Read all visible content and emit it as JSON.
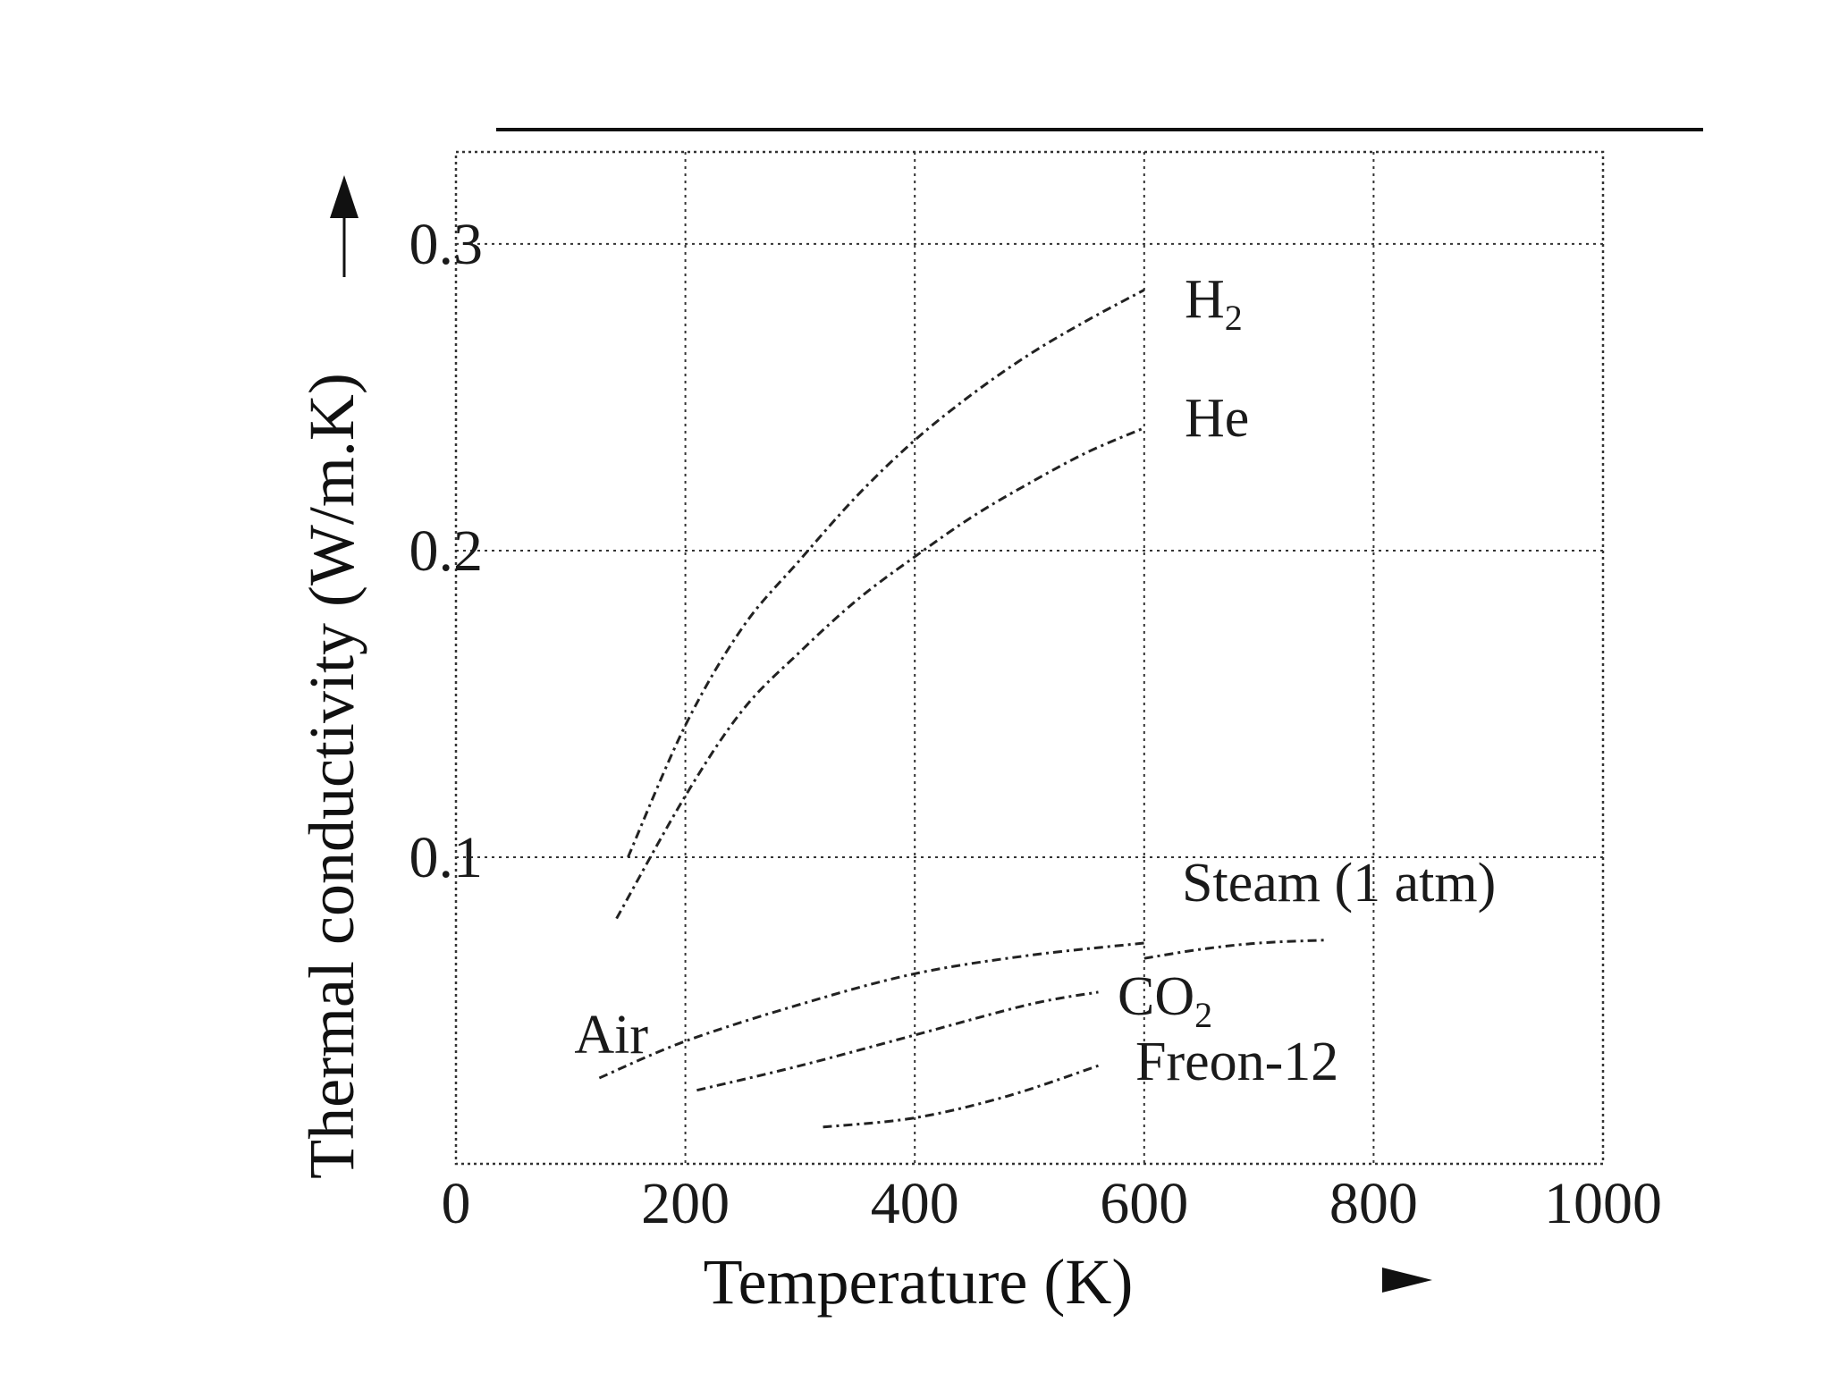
{
  "chart_data": {
    "type": "line",
    "title": "",
    "xlabel": "Temperature (K)",
    "ylabel": "Thermal conductivity (W/m.K)",
    "xlim": [
      0,
      1000
    ],
    "ylim": [
      0,
      0.33
    ],
    "x_ticks": [
      0,
      200,
      400,
      600,
      800,
      1000
    ],
    "x_tick_labels": [
      "0",
      "200",
      "400",
      "600",
      "800",
      "1000"
    ],
    "y_ticks": [
      0.1,
      0.2,
      0.3
    ],
    "y_tick_labels": [
      "0.1",
      "0.2",
      "0.3"
    ],
    "grid": true,
    "series": [
      {
        "name": "H2",
        "label_main": "H",
        "label_sub": "2",
        "x": [
          150,
          200,
          250,
          300,
          350,
          400,
          450,
          500,
          550,
          600
        ],
        "y": [
          0.1,
          0.143,
          0.175,
          0.197,
          0.218,
          0.236,
          0.251,
          0.264,
          0.275,
          0.285
        ]
      },
      {
        "name": "He",
        "label_main": "He",
        "label_sub": "",
        "x": [
          140,
          200,
          250,
          300,
          350,
          400,
          450,
          500,
          550,
          600
        ],
        "y": [
          0.08,
          0.12,
          0.148,
          0.167,
          0.184,
          0.198,
          0.211,
          0.222,
          0.232,
          0.24
        ]
      },
      {
        "name": "Steam (1 atm)",
        "label_main": "Steam (1 atm)",
        "label_sub": "",
        "x": [
          600,
          650,
          700,
          760
        ],
        "y": [
          0.067,
          0.07,
          0.072,
          0.073
        ]
      },
      {
        "name": "Air",
        "label_main": "Air",
        "label_sub": "",
        "x": [
          125,
          200,
          300,
          400,
          500,
          600
        ],
        "y": [
          0.028,
          0.04,
          0.052,
          0.062,
          0.068,
          0.072
        ]
      },
      {
        "name": "CO2",
        "label_main": "CO",
        "label_sub": "2",
        "x": [
          210,
          300,
          400,
          500,
          560
        ],
        "y": [
          0.024,
          0.032,
          0.042,
          0.052,
          0.056
        ]
      },
      {
        "name": "Freon-12",
        "label_main": "Freon-12",
        "label_sub": "",
        "x": [
          320,
          400,
          480,
          560
        ],
        "y": [
          0.012,
          0.015,
          0.022,
          0.032
        ]
      }
    ]
  }
}
